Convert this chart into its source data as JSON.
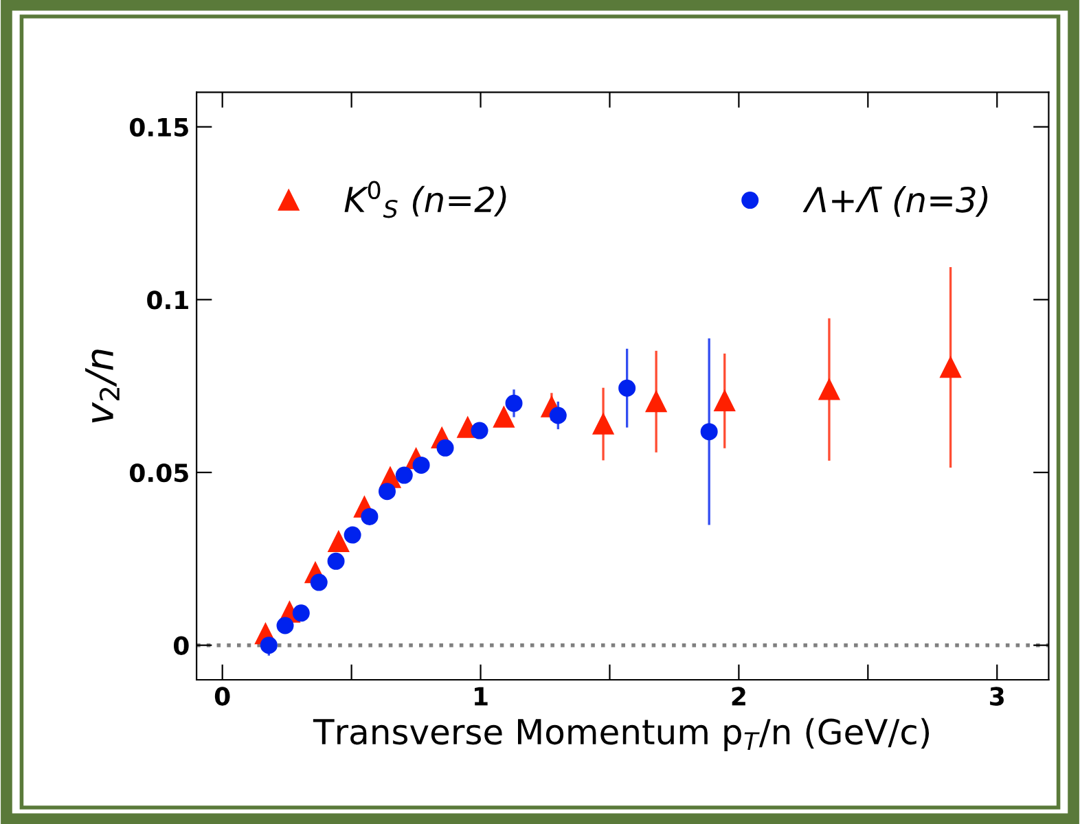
{
  "chart_data": {
    "type": "scatter",
    "xlabel": "Transverse Momentum p$_{T}$/n (GeV/c)",
    "ylabel": "v$_{2}$/n",
    "xlim": [
      -0.1,
      3.2
    ],
    "ylim": [
      -0.01,
      0.16
    ],
    "xticks": [
      0,
      {
        "value": 0.5,
        "label": null
      },
      1,
      {
        "value": 1.5,
        "label": null
      },
      2,
      {
        "value": 2.5,
        "label": null
      },
      3
    ],
    "yticks": [
      0,
      0.05,
      0.1,
      0.15
    ],
    "grid": false,
    "legend": "top",
    "ref_lines": [
      {
        "axis": "y",
        "value": 0,
        "color": "#808080",
        "line_style": "dotted"
      }
    ],
    "series": [
      {
        "name": "K$^{0}$$_{S}$ (n=2)",
        "color": "#ff2000",
        "marker": "triangle",
        "x": [
          0.167,
          0.26,
          0.36,
          0.45,
          0.55,
          0.65,
          0.75,
          0.85,
          0.95,
          1.09,
          1.275,
          1.475,
          1.68,
          1.945,
          2.35,
          2.82
        ],
        "values": [
          0.0033,
          0.0096,
          0.021,
          0.03,
          0.04,
          0.0485,
          0.054,
          0.06,
          0.063,
          0.066,
          0.069,
          0.064,
          0.0705,
          0.0707,
          0.074,
          0.0804
        ],
        "errors": [
          null,
          null,
          null,
          null,
          null,
          null,
          null,
          null,
          null,
          null,
          0.004,
          0.0105,
          0.0147,
          0.0137,
          0.0206,
          0.029
        ]
      },
      {
        "name": "Λ+Λ̄ (n=3)",
        "color": "#0022ee",
        "marker": "circle",
        "x": [
          0.18,
          0.243,
          0.305,
          0.374,
          0.44,
          0.504,
          0.57,
          0.638,
          0.704,
          0.77,
          0.863,
          0.996,
          1.129,
          1.3,
          1.567,
          1.885
        ],
        "values": [
          0.0,
          0.0057,
          0.0093,
          0.0182,
          0.0243,
          0.0319,
          0.0372,
          0.0445,
          0.0492,
          0.0521,
          0.0571,
          0.0621,
          0.07,
          0.0665,
          0.0744,
          0.0618
        ],
        "errors": [
          0.003,
          null,
          null,
          null,
          null,
          null,
          null,
          null,
          null,
          null,
          null,
          null,
          0.004,
          0.004,
          0.0114,
          0.027
        ]
      }
    ]
  }
}
